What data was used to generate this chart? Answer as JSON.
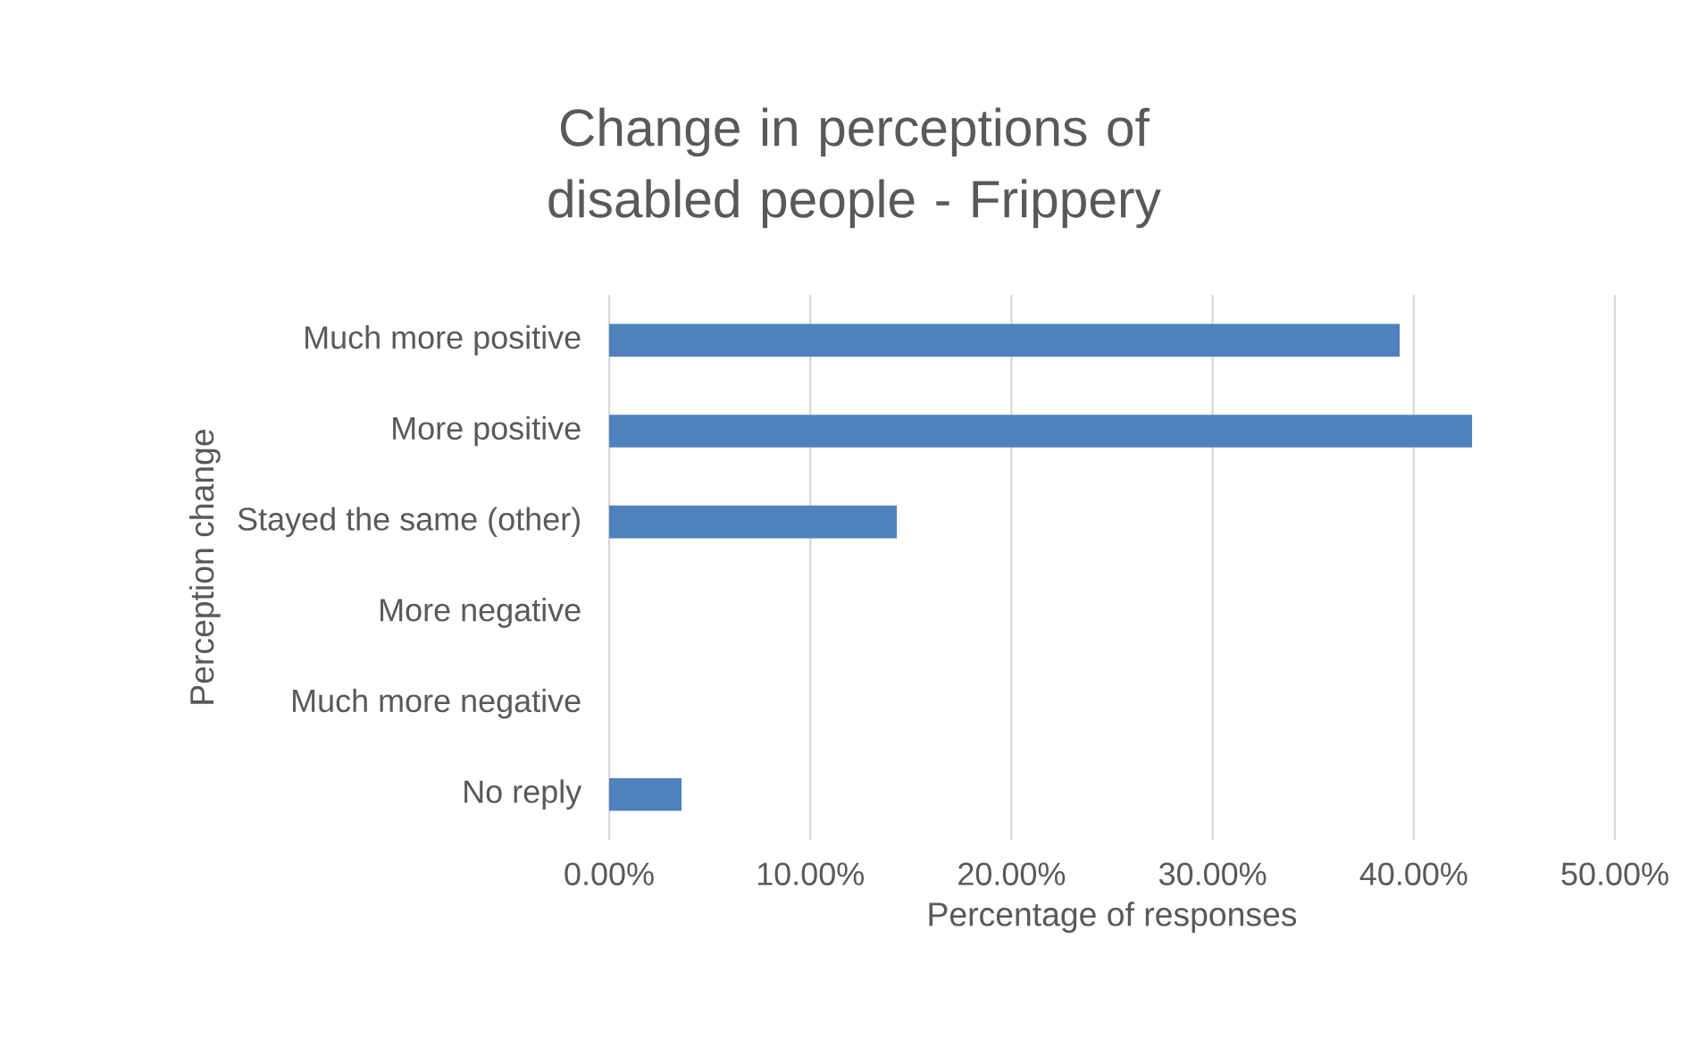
{
  "chart_data": {
    "type": "bar",
    "orientation": "horizontal",
    "title": "Change in perceptions of disabled people - Frippery",
    "xlabel": "Percentage of responses",
    "ylabel": "Perception change",
    "categories": [
      "Much more positive",
      "More positive",
      "Stayed the same (other)",
      "More negative",
      "Much more negative",
      "No reply"
    ],
    "values": [
      39.3,
      42.9,
      14.3,
      0,
      0,
      3.6
    ],
    "color": "#4f81bd",
    "xlim": [
      0,
      50
    ],
    "xticks": [
      {
        "value": 0,
        "label": "0.00%"
      },
      {
        "value": 10,
        "label": "10.00%"
      },
      {
        "value": 20,
        "label": "20.00%"
      },
      {
        "value": 30,
        "label": "30.00%"
      },
      {
        "value": 40,
        "label": "40.00%"
      },
      {
        "value": 50,
        "label": "50.00%"
      }
    ],
    "grid": "x"
  }
}
